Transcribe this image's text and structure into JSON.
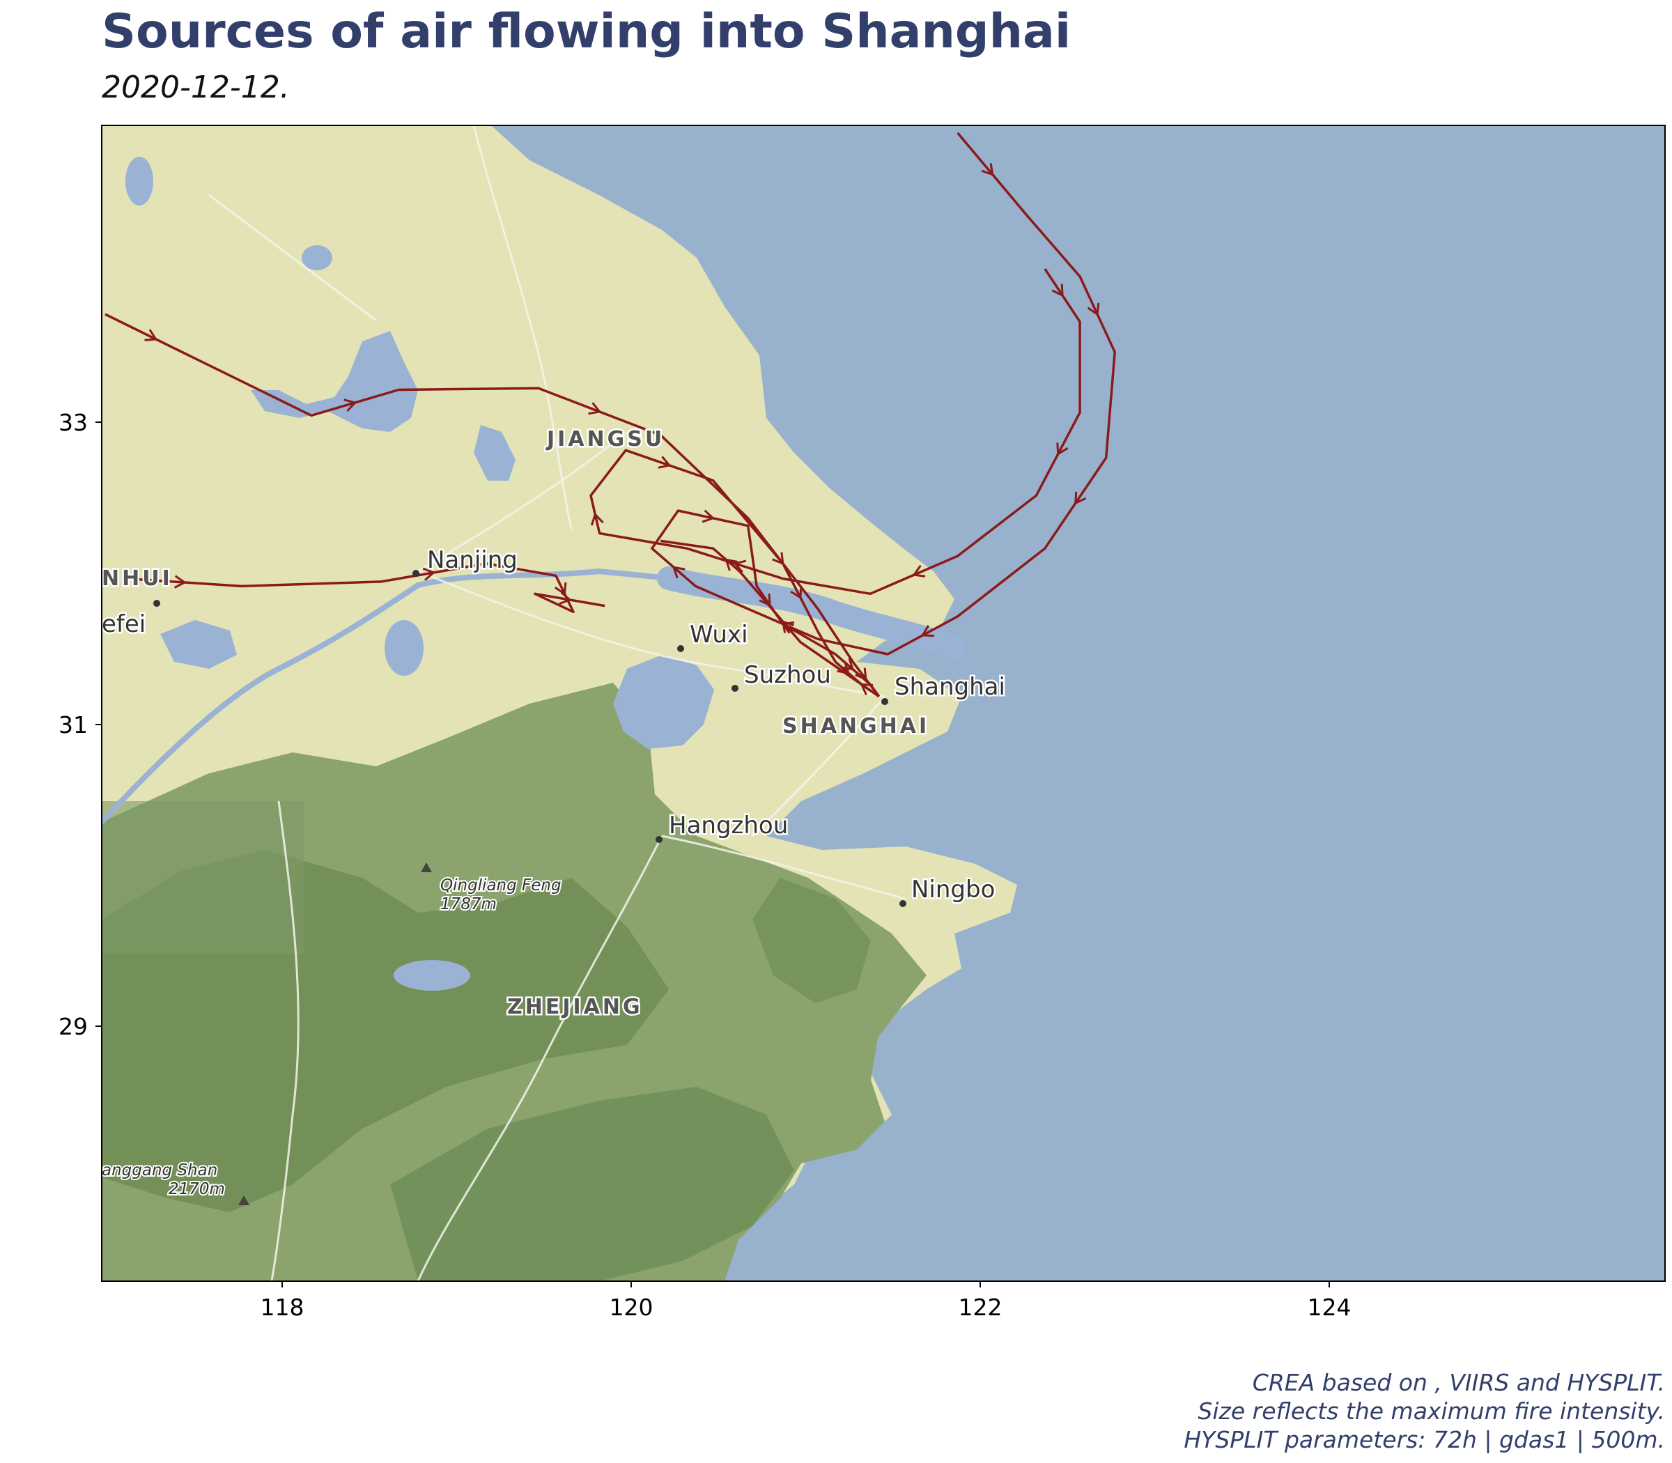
{
  "title": "Sources of air flowing into Shanghai",
  "subtitle": "2020-12-12.",
  "colors": {
    "title": "#333f6b",
    "sea": "#98b2cd",
    "land": "#e3e3b5",
    "forest": "#8ba46e",
    "forest_dark": "#6a8a52",
    "lake": "#9ab3d4",
    "trajectory": "#8b1a1a"
  },
  "map": {
    "place_labels": {
      "nanjing": "Nanjing",
      "hefei": "efei",
      "wuxi": "Wuxi",
      "suzhou": "Suzhou",
      "shanghai": "Shanghai",
      "hangzhou": "Hangzhou",
      "ningbo": "Ningbo"
    },
    "region_labels": {
      "jiangsu": "JIANGSU",
      "anhui": "NHUI",
      "shanghai": "SHANGHAI",
      "zhejiang": "ZHEJIANG"
    },
    "peaks": {
      "qingliang_name": "Qingliang Feng",
      "qingliang_height": "1787m",
      "huanggang_name": "anggang Shan",
      "huanggang_height": "2170m"
    }
  },
  "axes": {
    "x_ticks": [
      "118",
      "120",
      "122",
      "124"
    ],
    "y_ticks": [
      "33",
      "31",
      "29"
    ]
  },
  "chart_data": {
    "type": "map",
    "title": "Sources of air flowing into Shanghai",
    "subtitle": "2020-12-12.",
    "xlim": [
      117.0,
      125.95
    ],
    "ylim": [
      27.35,
      35.0
    ],
    "x_ticks": [
      118,
      120,
      122,
      124
    ],
    "y_ticks": [
      29,
      31,
      33
    ],
    "receptor": {
      "name": "Shanghai",
      "lon": 121.45,
      "lat": 31.22
    },
    "trajectories": [
      {
        "points": [
          [
            117.02,
            33.75
          ],
          [
            117.6,
            33.42
          ],
          [
            118.2,
            33.08
          ],
          [
            118.7,
            33.25
          ],
          [
            119.5,
            33.26
          ],
          [
            120.2,
            32.95
          ],
          [
            120.7,
            32.4
          ],
          [
            121.1,
            31.8
          ],
          [
            121.3,
            31.45
          ],
          [
            121.45,
            31.22
          ]
        ]
      },
      {
        "points": [
          [
            117.15,
            32.0
          ],
          [
            117.8,
            31.95
          ],
          [
            118.6,
            31.98
          ],
          [
            119.2,
            32.1
          ],
          [
            119.6,
            32.02
          ],
          [
            119.7,
            31.78
          ],
          [
            119.48,
            31.9
          ],
          [
            119.88,
            31.82
          ]
        ]
      },
      {
        "points": [
          [
            121.9,
            34.95
          ],
          [
            122.3,
            34.4
          ],
          [
            122.6,
            34.0
          ],
          [
            122.8,
            33.5
          ],
          [
            122.75,
            32.8
          ],
          [
            122.4,
            32.2
          ],
          [
            121.9,
            31.75
          ],
          [
            121.5,
            31.5
          ],
          [
            121.1,
            31.6
          ],
          [
            120.7,
            31.8
          ],
          [
            120.4,
            31.95
          ],
          [
            120.15,
            32.2
          ],
          [
            120.3,
            32.45
          ],
          [
            120.7,
            32.35
          ],
          [
            120.75,
            31.95
          ],
          [
            120.9,
            31.7
          ],
          [
            121.2,
            31.5
          ],
          [
            121.4,
            31.3
          ],
          [
            121.45,
            31.22
          ]
        ]
      },
      {
        "points": [
          [
            122.4,
            34.05
          ],
          [
            122.6,
            33.7
          ],
          [
            122.6,
            33.1
          ],
          [
            122.35,
            32.55
          ],
          [
            121.9,
            32.15
          ],
          [
            121.4,
            31.9
          ],
          [
            120.9,
            32.0
          ],
          [
            120.35,
            32.2
          ],
          [
            119.85,
            32.3
          ],
          [
            119.8,
            32.55
          ],
          [
            120.0,
            32.85
          ],
          [
            120.5,
            32.65
          ],
          [
            120.9,
            32.1
          ],
          [
            121.1,
            31.65
          ],
          [
            121.2,
            31.45
          ],
          [
            121.35,
            31.3
          ],
          [
            121.45,
            31.22
          ]
        ]
      },
      {
        "points": [
          [
            121.45,
            31.22
          ],
          [
            121.25,
            31.38
          ],
          [
            121.0,
            31.58
          ],
          [
            120.8,
            31.85
          ],
          [
            120.65,
            32.05
          ],
          [
            120.5,
            32.2
          ],
          [
            120.2,
            32.25
          ]
        ]
      }
    ]
  },
  "credit": {
    "line1": "CREA based on , VIIRS and HYSPLIT.",
    "line2": "Size reflects the maximum fire intensity.",
    "line3": "HYSPLIT parameters: 72h | gdas1 | 500m."
  }
}
